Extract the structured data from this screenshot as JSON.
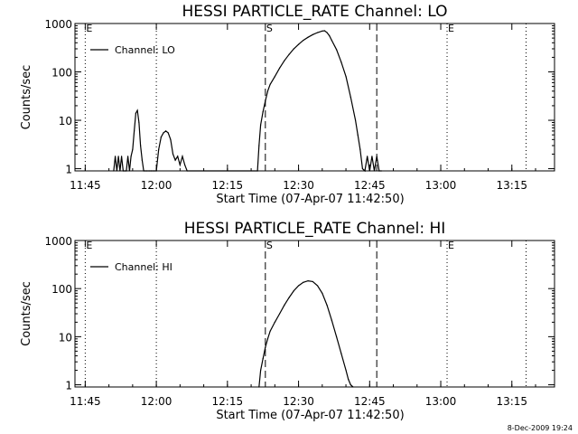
{
  "footer": "8-Dec-2009 19:24",
  "chart_data": [
    {
      "type": "line",
      "title": "HESSI PARTICLE_RATE Channel: LO",
      "xlabel": "Start Time (07-Apr-07 11:42:50)",
      "ylabel": "Counts/sec",
      "yscale": "log",
      "ylim": [
        0.9,
        1000
      ],
      "xlim": [
        "11:42:50",
        "13:24:00"
      ],
      "x_ticks": [
        "11:45",
        "12:00",
        "12:15",
        "12:30",
        "12:45",
        "13:00",
        "13:15"
      ],
      "y_ticks": [
        "1",
        "10",
        "100",
        "1000"
      ],
      "legend_position": "top-left",
      "markers": [
        {
          "label": "E",
          "time": "11:45:00",
          "style": "dotted"
        },
        {
          "label": "",
          "time": "12:00:00",
          "style": "dotted"
        },
        {
          "label": "S",
          "time": "12:23:00",
          "style": "dashed"
        },
        {
          "label": "",
          "time": "12:46:30",
          "style": "dashed"
        },
        {
          "label": "E",
          "time": "13:01:20",
          "style": "dotted"
        },
        {
          "label": "",
          "time": "13:18:00",
          "style": "dotted"
        }
      ],
      "series": [
        {
          "name": "Channel: LO",
          "x": [
            "11:51:00",
            "11:51:20",
            "11:51:40",
            "11:52:00",
            "11:52:20",
            "11:52:40",
            "11:53:00",
            "11:53:20",
            "11:53:40",
            "11:54:00",
            "11:54:20",
            "11:54:40",
            "11:55:00",
            "11:55:20",
            "11:55:40",
            "11:56:00",
            "11:56:20",
            "11:56:40",
            "11:57:00",
            "11:57:20",
            "11:57:40",
            "11:58:00",
            "11:58:30",
            "11:59:00",
            "11:59:30",
            "12:00:00",
            "12:00:30",
            "12:01:00",
            "12:01:30",
            "12:02:00",
            "12:02:30",
            "12:03:00",
            "12:03:30",
            "12:04:00",
            "12:04:30",
            "12:05:00",
            "12:05:30",
            "12:06:00",
            "12:06:30",
            "12:21:20",
            "12:21:40",
            "12:22:00",
            "12:22:30",
            "12:23:00",
            "12:23:30",
            "12:24:00",
            "12:25:00",
            "12:26:00",
            "12:27:00",
            "12:28:00",
            "12:29:00",
            "12:30:00",
            "12:31:00",
            "12:32:00",
            "12:33:00",
            "12:34:00",
            "12:35:00",
            "12:35:30",
            "12:36:00",
            "12:36:30",
            "12:37:00",
            "12:38:00",
            "12:39:00",
            "12:40:00",
            "12:41:00",
            "12:42:00",
            "12:42:30",
            "12:43:00",
            "12:43:30",
            "12:44:00",
            "12:44:30",
            "12:45:00",
            "12:45:30",
            "12:46:00",
            "12:46:30",
            "12:47:00",
            "12:47:30"
          ],
          "y": [
            0.9,
            1.8,
            0.9,
            1.8,
            0.9,
            1.8,
            0.9,
            0.9,
            0.9,
            1.8,
            0.9,
            1.8,
            2.5,
            6,
            14,
            16,
            9,
            3,
            1.5,
            0.9,
            0.9,
            0.9,
            0.9,
            0.9,
            0.9,
            0.9,
            2.5,
            4.5,
            5.5,
            6,
            5.5,
            4,
            2,
            1.5,
            1.8,
            1.2,
            1.8,
            1.2,
            0.9,
            0.9,
            3,
            8,
            15,
            25,
            40,
            55,
            80,
            120,
            170,
            230,
            300,
            370,
            450,
            520,
            590,
            650,
            700,
            710,
            650,
            560,
            450,
            290,
            160,
            80,
            30,
            10,
            5,
            2.5,
            1,
            0.9,
            1.8,
            0.9,
            1.8,
            0.9,
            1.8,
            0.9,
            0.9
          ]
        }
      ]
    },
    {
      "type": "line",
      "title": "HESSI PARTICLE_RATE Channel: HI",
      "xlabel": "Start Time (07-Apr-07 11:42:50)",
      "ylabel": "Counts/sec",
      "yscale": "log",
      "ylim": [
        0.9,
        1000
      ],
      "xlim": [
        "11:42:50",
        "13:24:00"
      ],
      "x_ticks": [
        "11:45",
        "12:00",
        "12:15",
        "12:30",
        "12:45",
        "13:00",
        "13:15"
      ],
      "y_ticks": [
        "1",
        "10",
        "100",
        "1000"
      ],
      "legend_position": "top-left",
      "markers": [
        {
          "label": "E",
          "time": "11:45:00",
          "style": "dotted"
        },
        {
          "label": "",
          "time": "12:00:00",
          "style": "dotted"
        },
        {
          "label": "S",
          "time": "12:23:00",
          "style": "dashed"
        },
        {
          "label": "",
          "time": "12:46:30",
          "style": "dashed"
        },
        {
          "label": "E",
          "time": "13:01:20",
          "style": "dotted"
        },
        {
          "label": "",
          "time": "13:18:00",
          "style": "dotted"
        }
      ],
      "series": [
        {
          "name": "Channel: HI",
          "x": [
            "12:21:40",
            "12:22:00",
            "12:22:30",
            "12:23:00",
            "12:23:30",
            "12:24:00",
            "12:25:00",
            "12:26:00",
            "12:27:00",
            "12:28:00",
            "12:29:00",
            "12:30:00",
            "12:31:00",
            "12:32:00",
            "12:33:00",
            "12:34:00",
            "12:35:00",
            "12:36:00",
            "12:37:00",
            "12:38:00",
            "12:39:00",
            "12:40:00",
            "12:40:30",
            "12:41:00",
            "12:41:30"
          ],
          "y": [
            0.9,
            2,
            3.5,
            6,
            9,
            13,
            20,
            30,
            45,
            65,
            90,
            115,
            135,
            145,
            140,
            115,
            80,
            45,
            22,
            10,
            4.5,
            2,
            1.3,
            1,
            0.9
          ]
        }
      ]
    }
  ]
}
